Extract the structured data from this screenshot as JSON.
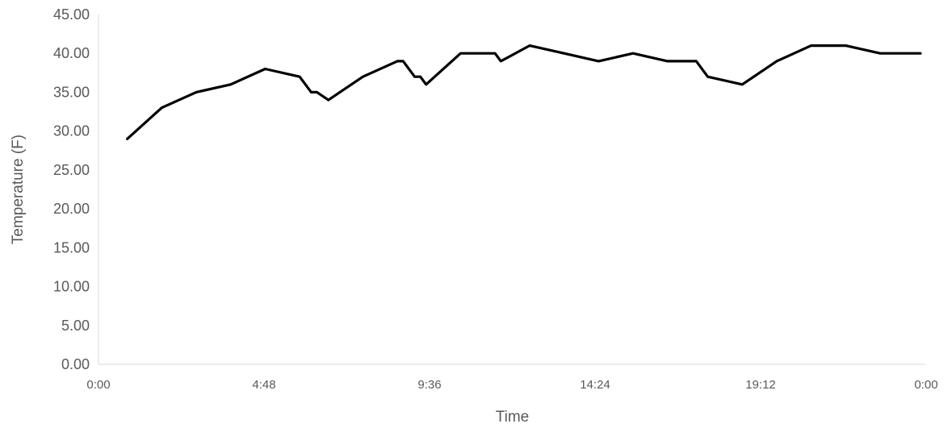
{
  "chart_data": {
    "type": "line",
    "title": "",
    "xlabel": "Time",
    "ylabel": "Temperature (F)",
    "ylim": [
      0,
      45
    ],
    "xlim": [
      "0:00",
      "0:00 (+1 day)"
    ],
    "grid": false,
    "legend": "none",
    "y_ticks": [
      "0.00",
      "5.00",
      "10.00",
      "15.00",
      "20.00",
      "25.00",
      "30.00",
      "35.00",
      "40.00",
      "45.00"
    ],
    "x_ticks": [
      "0:00",
      "4:48",
      "9:36",
      "14:24",
      "19:12",
      "0:00"
    ],
    "series": [
      {
        "color": "#000000",
        "x": [
          "0:50",
          "1:50",
          "2:50",
          "3:50",
          "4:50",
          "5:50",
          "6:10",
          "6:20",
          "6:40",
          "7:40",
          "8:40",
          "8:50",
          "9:10",
          "9:20",
          "9:30",
          "10:30",
          "11:30",
          "11:40",
          "12:30",
          "13:30",
          "14:30",
          "15:30",
          "16:30",
          "17:20",
          "17:40",
          "18:40",
          "19:40",
          "20:40",
          "21:40",
          "22:40",
          "23:50"
        ],
        "values": [
          29,
          33,
          35,
          36,
          38,
          37,
          35,
          35,
          34,
          37,
          39,
          39,
          37,
          37,
          36,
          40,
          40,
          39,
          41,
          40,
          39,
          40,
          39,
          39,
          37,
          36,
          39,
          41,
          41,
          40,
          40
        ]
      }
    ]
  }
}
